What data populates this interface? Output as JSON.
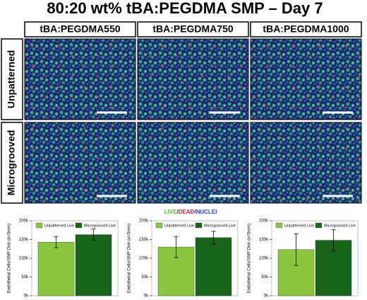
{
  "title": "80:20 wt% tBA:PEGDMA SMP – Day 7",
  "columns": [
    "tBA:PEGDMA550",
    "tBA:PEGDMA750",
    "tBA:PEGDMA1000"
  ],
  "rows": [
    "Unpatterned",
    "Microgrooved"
  ],
  "stain_label": [
    "LIVE",
    "/",
    "DEAD",
    "/",
    "NUCLEI"
  ],
  "chart_data": [
    {
      "type": "bar",
      "ylabel": "Endothelial Cells/SMP Disk (n=5mm)",
      "ylim": [
        0,
        200000
      ],
      "yticks": [
        {
          "value": 0,
          "label": "0k"
        },
        {
          "value": 50000,
          "label": "50k"
        },
        {
          "value": 100000,
          "label": "100k"
        },
        {
          "value": 150000,
          "label": "150k"
        },
        {
          "value": 200000,
          "label": "200k"
        }
      ],
      "series": [
        {
          "name": "Unpatterned Live",
          "color": "#8cc63f",
          "values": [
            143000
          ],
          "errors": [
            15000
          ]
        },
        {
          "name": "Microgrooved Live",
          "color": "#17651b",
          "values": [
            163000
          ],
          "errors": [
            15000
          ]
        }
      ]
    },
    {
      "type": "bar",
      "ylabel": "Endothelial Cells/SMP Disk (n=5mm)",
      "ylim": [
        0,
        200000
      ],
      "yticks": [
        {
          "value": 0,
          "label": "0k"
        },
        {
          "value": 50000,
          "label": "50k"
        },
        {
          "value": 100000,
          "label": "100k"
        },
        {
          "value": 150000,
          "label": "150k"
        },
        {
          "value": 200000,
          "label": "200k"
        }
      ],
      "series": [
        {
          "name": "Unpatterned Live",
          "color": "#8cc63f",
          "values": [
            130000
          ],
          "errors": [
            28000
          ]
        },
        {
          "name": "Microgrooved Live",
          "color": "#17651b",
          "values": [
            155000
          ],
          "errors": [
            17000
          ]
        }
      ]
    },
    {
      "type": "bar",
      "ylabel": "Endothelial Cells/SMP Disk (n=5mm)",
      "ylim": [
        0,
        200000
      ],
      "yticks": [
        {
          "value": 0,
          "label": "0k"
        },
        {
          "value": 50000,
          "label": "50k"
        },
        {
          "value": 100000,
          "label": "100k"
        },
        {
          "value": 150000,
          "label": "150k"
        },
        {
          "value": 200000,
          "label": "200k"
        }
      ],
      "series": [
        {
          "name": "Unpatterned Live",
          "color": "#8cc63f",
          "values": [
            123000
          ],
          "errors": [
            42000
          ]
        },
        {
          "name": "Microgrooved Live",
          "color": "#17651b",
          "values": [
            148000
          ],
          "errors": [
            28000
          ]
        }
      ]
    }
  ]
}
